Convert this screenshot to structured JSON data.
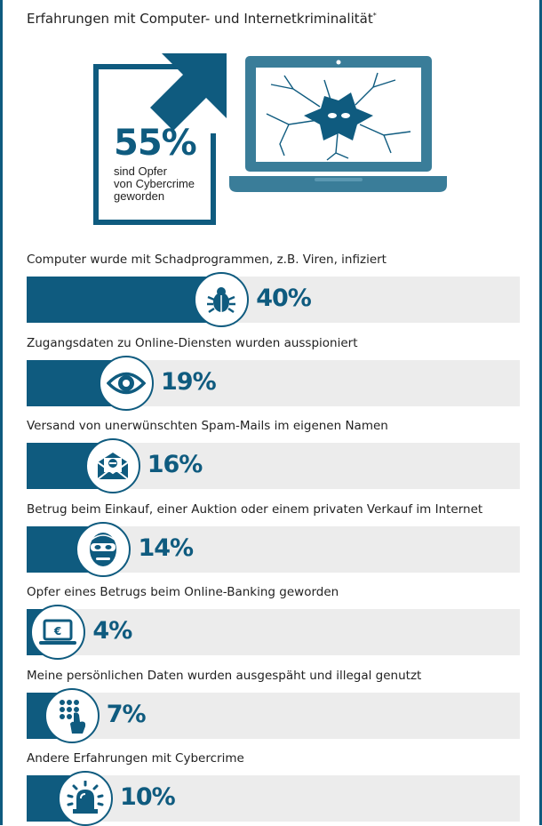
{
  "title": "Erfahrungen mit Computer- und Internetkriminalität",
  "title_footnote_mark": "*",
  "hero": {
    "value": "55%",
    "text_lines": [
      "sind Opfer",
      "von Cybercrime",
      "geworden"
    ]
  },
  "colors": {
    "accent": "#0f5b7f",
    "track": "#ececec"
  },
  "chart_data": {
    "type": "bar",
    "orientation": "horizontal",
    "ylim": [
      0,
      100
    ],
    "categories": [
      "Computer wurde mit Schadprogrammen, z.B. Viren, infiziert",
      "Zugangsdaten zu Online-Diensten wurden ausspioniert",
      "Versand von unerwünschten Spam-Mails im eigenen Namen",
      "Betrug beim Einkauf, einer Auktion oder einem privaten Verkauf im Internet",
      "Opfer eines Betrugs beim Online-Banking geworden",
      "Meine persönlichen Daten wurden ausgespäht und illegal genutzt",
      "Andere Erfahrungen mit Cybercrime"
    ],
    "values": [
      40,
      19,
      16,
      14,
      4,
      7,
      10
    ],
    "value_labels": [
      "40%",
      "19%",
      "16%",
      "14%",
      "4%",
      "7%",
      "10%"
    ],
    "icons": [
      "bug-icon",
      "eye-icon",
      "spam-mail-icon",
      "masked-thief-icon",
      "laptop-euro-icon",
      "fingerprint-keypad-icon",
      "alarm-siren-icon"
    ]
  }
}
